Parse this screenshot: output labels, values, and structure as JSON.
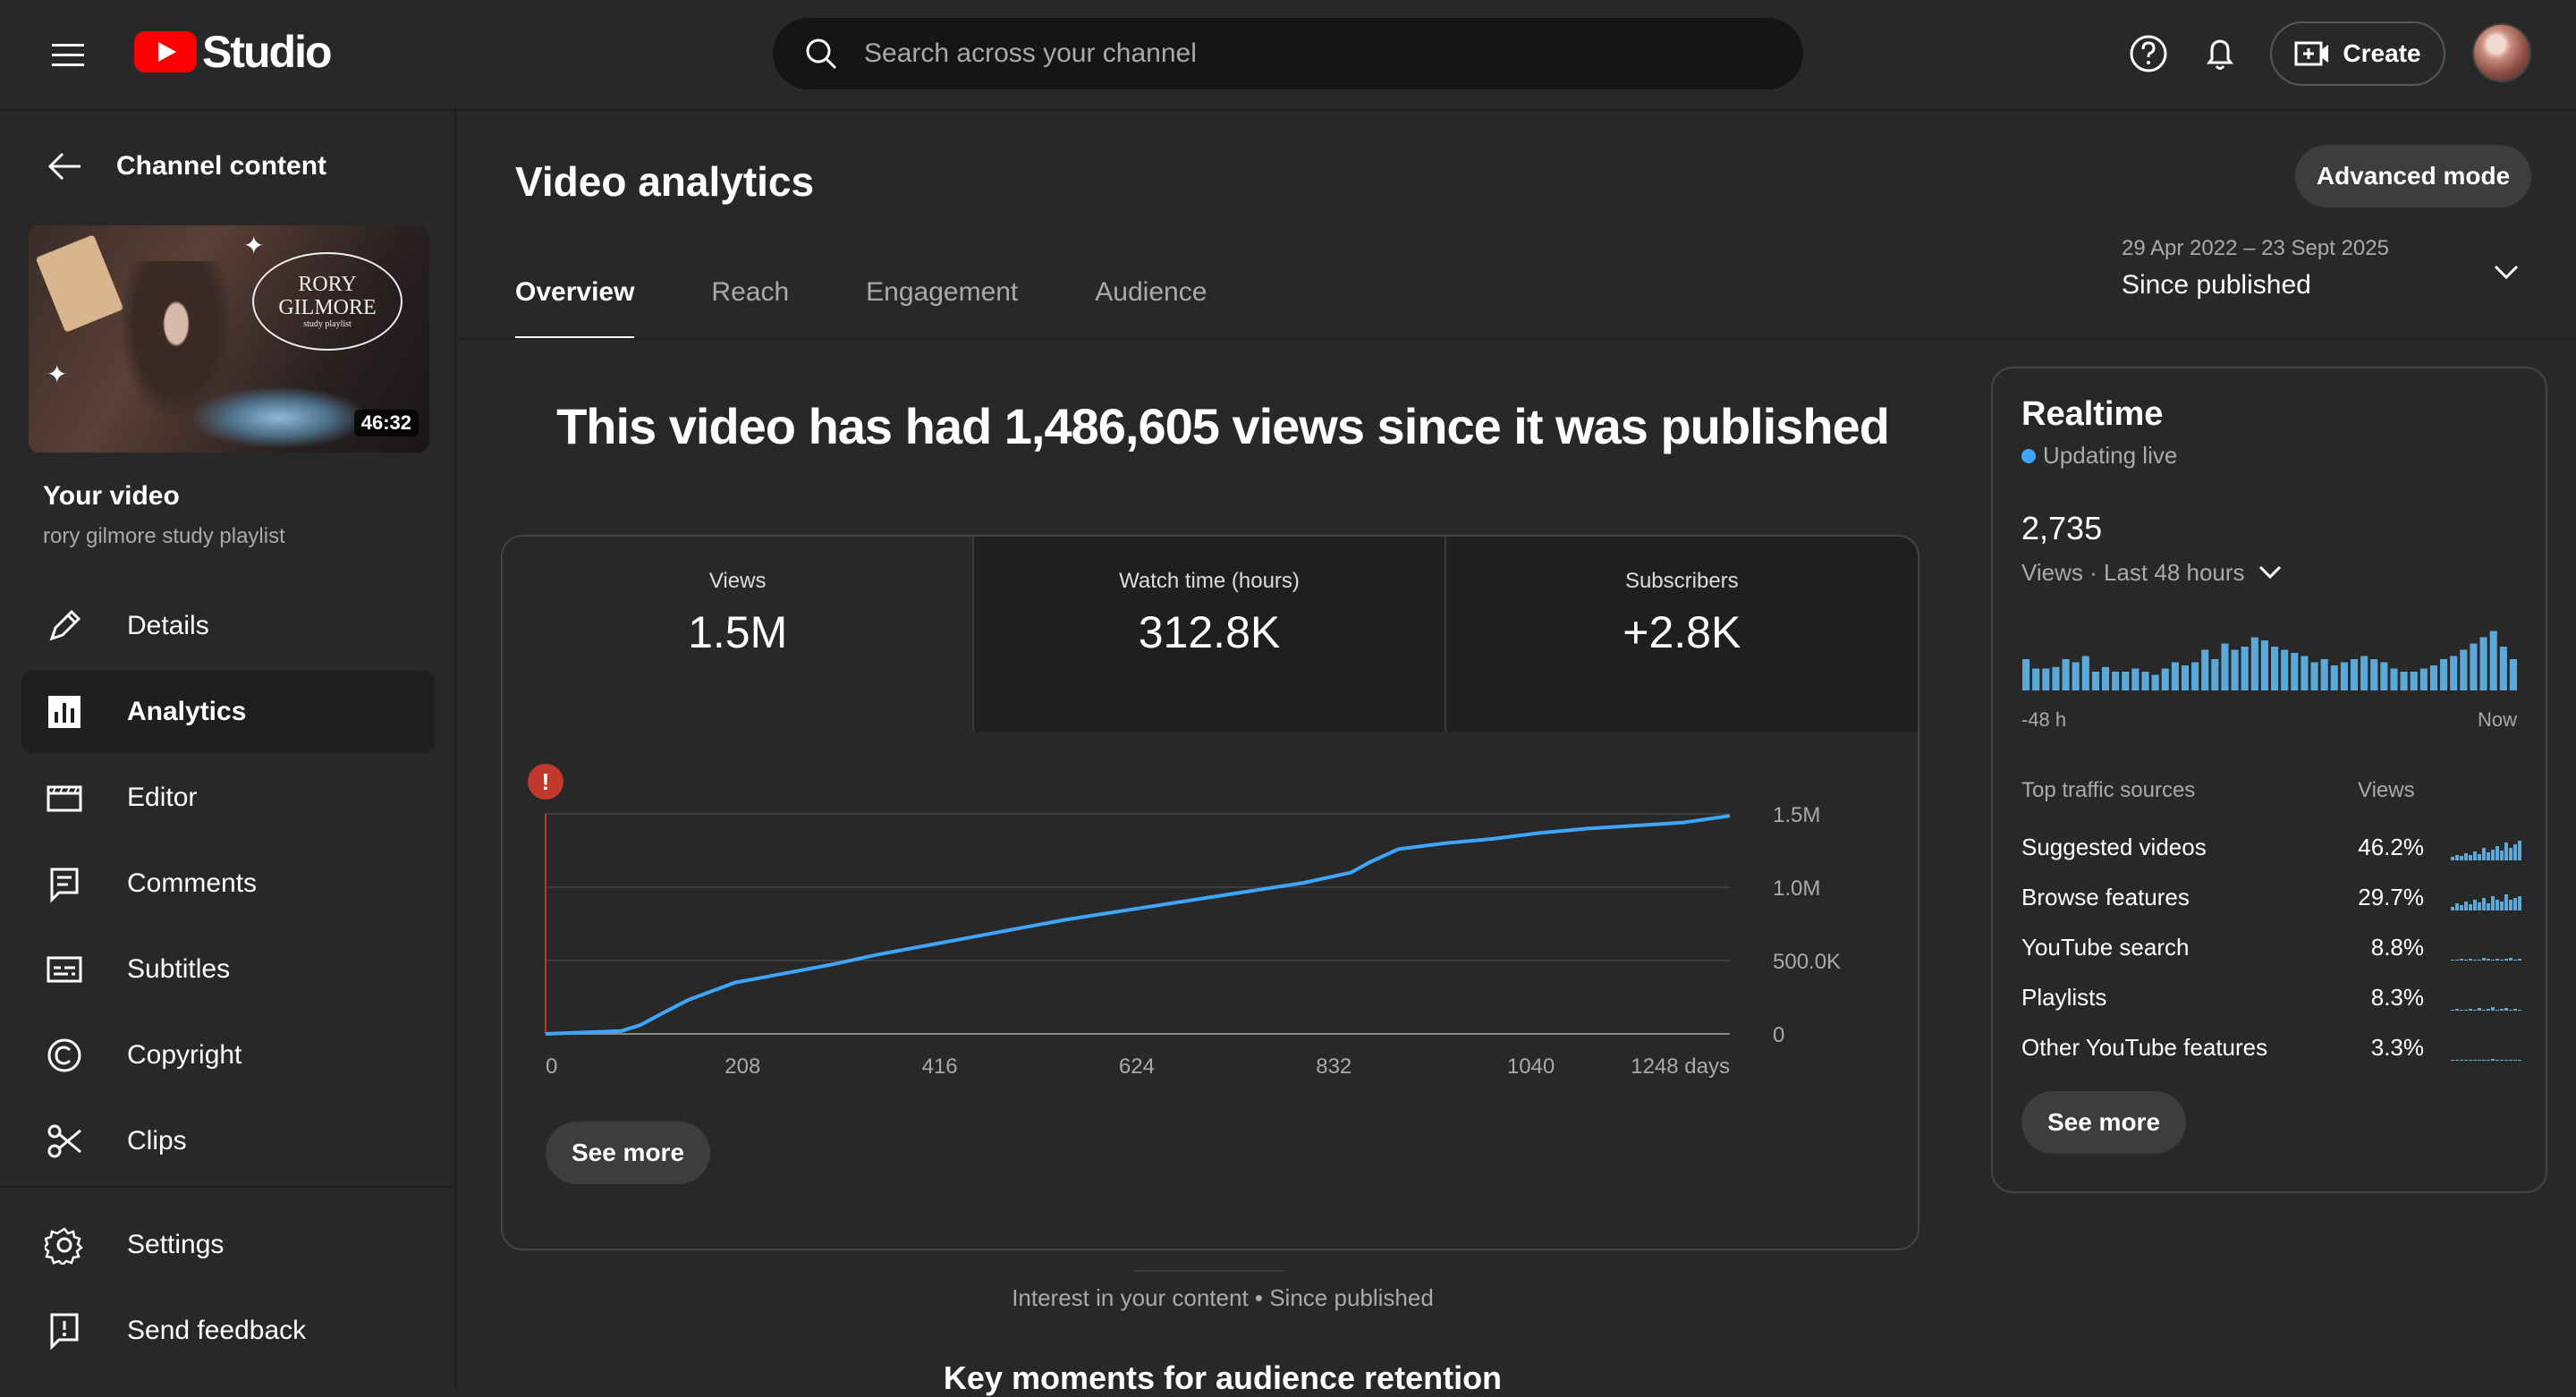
{
  "header": {
    "logo_text": "Studio",
    "search_placeholder": "Search across your channel",
    "create_label": "Create"
  },
  "sidebar": {
    "back_label": "Channel content",
    "video_duration": "46:32",
    "thumb_title_1": "RORY",
    "thumb_title_2": "GILMORE",
    "thumb_title_3": "study playlist",
    "your_video_label": "Your video",
    "video_title": "rory gilmore study playlist",
    "items": [
      {
        "label": "Details",
        "icon": "pencil-icon"
      },
      {
        "label": "Analytics",
        "icon": "analytics-icon",
        "active": true
      },
      {
        "label": "Editor",
        "icon": "clapperboard-icon"
      },
      {
        "label": "Comments",
        "icon": "comments-icon"
      },
      {
        "label": "Subtitles",
        "icon": "subtitles-icon"
      },
      {
        "label": "Copyright",
        "icon": "copyright-icon"
      },
      {
        "label": "Clips",
        "icon": "scissors-icon"
      }
    ],
    "bottom_items": [
      {
        "label": "Settings",
        "icon": "gear-icon"
      },
      {
        "label": "Send feedback",
        "icon": "feedback-icon"
      }
    ]
  },
  "main": {
    "title": "Video analytics",
    "advanced_mode_label": "Advanced mode",
    "tabs": [
      "Overview",
      "Reach",
      "Engagement",
      "Audience"
    ],
    "active_tab": "Overview",
    "date_range": "29 Apr 2022 – 23 Sept 2025",
    "date_preset": "Since published",
    "headline": "This video has had 1,486,605 views since it was published",
    "metrics": [
      {
        "label": "Views",
        "value": "1.5M"
      },
      {
        "label": "Watch time (hours)",
        "value": "312.8K"
      },
      {
        "label": "Subscribers",
        "value": "+2.8K"
      }
    ],
    "see_more_label": "See more",
    "interest_label": "Interest in your content • Since published",
    "key_moments_label": "Key moments for audience retention"
  },
  "chart_data": {
    "type": "line",
    "series": [
      {
        "x": [
          0,
          40,
          80,
          100,
          120,
          150,
          200,
          250,
          300,
          350,
          400,
          450,
          500,
          550,
          600,
          650,
          700,
          750,
          800,
          850,
          870,
          900,
          950,
          1000,
          1050,
          1100,
          1150,
          1200,
          1250
        ],
        "values": [
          0,
          10000,
          20000,
          60000,
          130000,
          230000,
          350000,
          410000,
          470000,
          540000,
          600000,
          660000,
          720000,
          780000,
          830000,
          880000,
          930000,
          980000,
          1030000,
          1100000,
          1170000,
          1260000,
          1300000,
          1330000,
          1370000,
          1400000,
          1420000,
          1440000,
          1486605
        ]
      }
    ],
    "x_ticks": [
      "0",
      "208",
      "416",
      "624",
      "832",
      "1040",
      "1248 days"
    ],
    "y_ticks": [
      "0",
      "500.0K",
      "1.0M",
      "1.5M"
    ],
    "xlim": [
      0,
      1250
    ],
    "ylim": [
      0,
      1500000
    ],
    "colors": {
      "line": "#3ea6ff",
      "marker": "#c0392b"
    }
  },
  "realtime": {
    "title": "Realtime",
    "live_label": "Updating live",
    "count": "2,735",
    "period_label": "Views · Last 48 hours",
    "axis_start": "-48 h",
    "axis_end": "Now",
    "bars": [
      20,
      14,
      14,
      15,
      20,
      18,
      22,
      12,
      15,
      12,
      12,
      14,
      12,
      10,
      14,
      18,
      16,
      18,
      26,
      20,
      30,
      26,
      28,
      34,
      32,
      28,
      26,
      24,
      22,
      18,
      20,
      16,
      18,
      20,
      22,
      20,
      18,
      14,
      12,
      12,
      14,
      16,
      20,
      22,
      26,
      30,
      34,
      38,
      28,
      20
    ],
    "traffic_header": "Top traffic sources",
    "traffic_views_header": "Views",
    "traffic": [
      {
        "name": "Suggested videos",
        "value": "46.2%"
      },
      {
        "name": "Browse features",
        "value": "29.7%"
      },
      {
        "name": "YouTube search",
        "value": "8.8%"
      },
      {
        "name": "Playlists",
        "value": "8.3%"
      },
      {
        "name": "Other YouTube features",
        "value": "3.3%"
      }
    ],
    "see_more_label": "See more"
  }
}
